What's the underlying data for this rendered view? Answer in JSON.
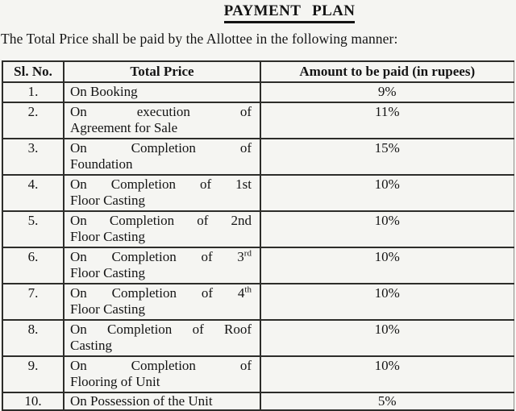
{
  "title": "PAYMENT PLAN",
  "intro": "The Total Price shall be paid by the Allottee in the following manner:",
  "table": {
    "headers": [
      "Sl. No.",
      "Total Price",
      "Amount to be paid (in rupees)"
    ],
    "rows": [
      {
        "no": "1.",
        "line1": "On Booking",
        "line2": "",
        "justify": false,
        "amount": "9%"
      },
      {
        "no": "2.",
        "line1": "On execution of",
        "line2": "Agreement for Sale",
        "justify": true,
        "amount": "11%"
      },
      {
        "no": "3.",
        "line1": "On Completion of",
        "line2": "Foundation",
        "justify": true,
        "amount": "15%"
      },
      {
        "no": "4.",
        "line1": "On Completion of 1st",
        "line2": "Floor Casting",
        "justify": true,
        "amount": "10%"
      },
      {
        "no": "5.",
        "line1": "On Completion of 2nd",
        "line2": "Floor Casting",
        "justify": true,
        "amount": "10%"
      },
      {
        "no": "6.",
        "line1": "On Completion of 3^rd",
        "line2": "Floor Casting",
        "justify": true,
        "amount": "10%"
      },
      {
        "no": "7.",
        "line1": "On Completion of 4^th",
        "line2": "Floor Casting",
        "justify": true,
        "amount": "10%"
      },
      {
        "no": "8.",
        "line1": "On Completion of Roof",
        "line2": "Casting",
        "justify": true,
        "amount": "10%"
      },
      {
        "no": "9.",
        "line1": "On Completion of",
        "line2": "Flooring of Unit",
        "justify": true,
        "amount": "10%"
      },
      {
        "no": "10.",
        "line1": "On Possession of the Unit",
        "line2": "",
        "justify": false,
        "amount": "5%"
      }
    ]
  }
}
